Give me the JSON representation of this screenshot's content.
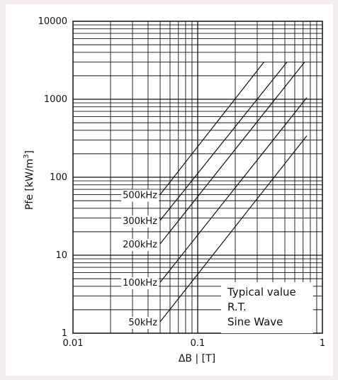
{
  "chart_data": {
    "type": "line",
    "title": "",
    "xlabel": "ΔB | [T]",
    "ylabel": "Pfe [kW/m3]",
    "ylabel_main": "Pfe [kW/m",
    "ylabel_sup": "3",
    "ylabel_tail": "]",
    "xscale": "log",
    "yscale": "log",
    "xlim": [
      0.01,
      1
    ],
    "ylim": [
      1,
      10000
    ],
    "grid": true,
    "legend": "none",
    "x_tick_labels": [
      "0.01",
      "0.1",
      "1"
    ],
    "y_tick_labels": [
      "1",
      "10",
      "100",
      "1000",
      "10000"
    ],
    "series": [
      {
        "name": "500kHz",
        "x": [
          0.05,
          0.34
        ],
        "y": [
          60,
          3000
        ]
      },
      {
        "name": "300kHz",
        "x": [
          0.05,
          0.52
        ],
        "y": [
          28,
          3000
        ]
      },
      {
        "name": "200kHz",
        "x": [
          0.05,
          0.72
        ],
        "y": [
          14,
          3000
        ]
      },
      {
        "name": "100kHz",
        "x": [
          0.05,
          0.75
        ],
        "y": [
          4.5,
          1050
        ]
      },
      {
        "name": "50kHz",
        "x": [
          0.05,
          0.75
        ],
        "y": [
          1.4,
          340
        ]
      }
    ],
    "annotations": [
      "Typical value",
      "R.T.",
      "Sine Wave"
    ],
    "colors": {
      "background": "#f3ecf0",
      "plot_background": "#ffffff",
      "line": "#111111"
    }
  }
}
